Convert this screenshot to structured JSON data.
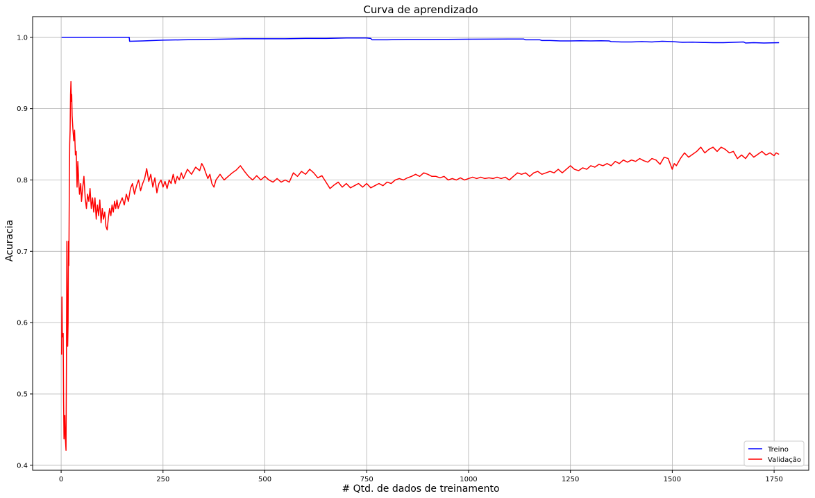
{
  "chart_data": {
    "type": "line",
    "title": "Curva de aprendizado",
    "xlabel": "# Qtd. de dados de treinamento",
    "ylabel": "Acuracia",
    "xlim": [
      -70,
      1835
    ],
    "ylim": [
      0.393,
      1.029
    ],
    "xticks": [
      0,
      250,
      500,
      750,
      1000,
      1250,
      1500,
      1750
    ],
    "yticks": [
      0.4,
      0.5,
      0.6,
      0.7,
      0.8,
      0.9,
      1.0
    ],
    "xtick_labels": [
      "0",
      "250",
      "500",
      "750",
      "1000",
      "1250",
      "1500",
      "1750"
    ],
    "ytick_labels": [
      "0.4",
      "0.5",
      "0.6",
      "0.7",
      "0.8",
      "0.9",
      "1.0"
    ],
    "grid": true,
    "legend_position": "lower-right",
    "series": [
      {
        "name": "Treino",
        "color": "#0000ff",
        "points": [
          [
            1,
            1.0
          ],
          [
            50,
            1.0
          ],
          [
            100,
            1.0
          ],
          [
            150,
            1.0
          ],
          [
            167,
            1.0
          ],
          [
            168,
            0.9945
          ],
          [
            200,
            0.995
          ],
          [
            250,
            0.996
          ],
          [
            300,
            0.9965
          ],
          [
            350,
            0.997
          ],
          [
            400,
            0.9975
          ],
          [
            450,
            0.998
          ],
          [
            500,
            0.998
          ],
          [
            550,
            0.998
          ],
          [
            600,
            0.9985
          ],
          [
            650,
            0.9985
          ],
          [
            700,
            0.999
          ],
          [
            750,
            0.999
          ],
          [
            760,
            0.9985
          ],
          [
            763,
            0.9965
          ],
          [
            800,
            0.9965
          ],
          [
            850,
            0.997
          ],
          [
            900,
            0.997
          ],
          [
            950,
            0.9972
          ],
          [
            1000,
            0.9974
          ],
          [
            1050,
            0.9975
          ],
          [
            1100,
            0.9976
          ],
          [
            1135,
            0.9977
          ],
          [
            1140,
            0.9965
          ],
          [
            1175,
            0.9965
          ],
          [
            1180,
            0.9955
          ],
          [
            1200,
            0.9955
          ],
          [
            1225,
            0.995
          ],
          [
            1250,
            0.995
          ],
          [
            1275,
            0.9952
          ],
          [
            1300,
            0.995
          ],
          [
            1325,
            0.9952
          ],
          [
            1345,
            0.995
          ],
          [
            1350,
            0.994
          ],
          [
            1375,
            0.9935
          ],
          [
            1400,
            0.9935
          ],
          [
            1425,
            0.994
          ],
          [
            1450,
            0.9935
          ],
          [
            1475,
            0.9945
          ],
          [
            1500,
            0.994
          ],
          [
            1525,
            0.993
          ],
          [
            1550,
            0.9932
          ],
          [
            1575,
            0.9928
          ],
          [
            1600,
            0.9925
          ],
          [
            1625,
            0.9925
          ],
          [
            1650,
            0.993
          ],
          [
            1675,
            0.9935
          ],
          [
            1680,
            0.992
          ],
          [
            1700,
            0.9925
          ],
          [
            1725,
            0.992
          ],
          [
            1762,
            0.9925
          ]
        ]
      },
      {
        "name": "Validação",
        "color": "#ff0000",
        "points": [
          [
            1,
            0.555
          ],
          [
            2,
            0.636
          ],
          [
            3,
            0.58
          ],
          [
            5,
            0.585
          ],
          [
            6,
            0.49
          ],
          [
            7,
            0.437
          ],
          [
            9,
            0.47
          ],
          [
            10,
            0.44
          ],
          [
            12,
            0.421
          ],
          [
            13,
            0.54
          ],
          [
            14,
            0.714
          ],
          [
            15,
            0.62
          ],
          [
            16,
            0.567
          ],
          [
            17,
            0.6
          ],
          [
            18,
            0.714
          ],
          [
            19,
            0.68
          ],
          [
            20,
            0.78
          ],
          [
            21,
            0.85
          ],
          [
            22,
            0.87
          ],
          [
            23,
            0.92
          ],
          [
            24,
            0.938
          ],
          [
            25,
            0.91
          ],
          [
            26,
            0.92
          ],
          [
            27,
            0.89
          ],
          [
            29,
            0.87
          ],
          [
            31,
            0.855
          ],
          [
            33,
            0.87
          ],
          [
            35,
            0.835
          ],
          [
            37,
            0.84
          ],
          [
            39,
            0.79
          ],
          [
            41,
            0.826
          ],
          [
            43,
            0.8
          ],
          [
            45,
            0.78
          ],
          [
            48,
            0.795
          ],
          [
            50,
            0.77
          ],
          [
            53,
            0.79
          ],
          [
            56,
            0.805
          ],
          [
            59,
            0.775
          ],
          [
            62,
            0.76
          ],
          [
            65,
            0.78
          ],
          [
            68,
            0.77
          ],
          [
            71,
            0.788
          ],
          [
            74,
            0.76
          ],
          [
            77,
            0.775
          ],
          [
            80,
            0.755
          ],
          [
            83,
            0.775
          ],
          [
            86,
            0.745
          ],
          [
            89,
            0.765
          ],
          [
            92,
            0.75
          ],
          [
            95,
            0.772
          ],
          [
            98,
            0.74
          ],
          [
            101,
            0.76
          ],
          [
            104,
            0.745
          ],
          [
            107,
            0.755
          ],
          [
            110,
            0.735
          ],
          [
            113,
            0.73
          ],
          [
            116,
            0.748
          ],
          [
            119,
            0.76
          ],
          [
            122,
            0.75
          ],
          [
            125,
            0.765
          ],
          [
            128,
            0.755
          ],
          [
            131,
            0.77
          ],
          [
            134,
            0.76
          ],
          [
            137,
            0.772
          ],
          [
            140,
            0.76
          ],
          [
            145,
            0.768
          ],
          [
            150,
            0.775
          ],
          [
            155,
            0.765
          ],
          [
            160,
            0.78
          ],
          [
            165,
            0.77
          ],
          [
            170,
            0.788
          ],
          [
            175,
            0.795
          ],
          [
            180,
            0.78
          ],
          [
            185,
            0.792
          ],
          [
            190,
            0.8
          ],
          [
            195,
            0.785
          ],
          [
            200,
            0.795
          ],
          [
            205,
            0.802
          ],
          [
            210,
            0.816
          ],
          [
            215,
            0.798
          ],
          [
            220,
            0.808
          ],
          [
            225,
            0.79
          ],
          [
            230,
            0.803
          ],
          [
            235,
            0.782
          ],
          [
            240,
            0.795
          ],
          [
            245,
            0.8
          ],
          [
            250,
            0.79
          ],
          [
            255,
            0.798
          ],
          [
            260,
            0.788
          ],
          [
            265,
            0.8
          ],
          [
            270,
            0.795
          ],
          [
            275,
            0.808
          ],
          [
            280,
            0.795
          ],
          [
            285,
            0.805
          ],
          [
            290,
            0.8
          ],
          [
            295,
            0.81
          ],
          [
            300,
            0.802
          ],
          [
            310,
            0.815
          ],
          [
            320,
            0.808
          ],
          [
            330,
            0.818
          ],
          [
            340,
            0.813
          ],
          [
            345,
            0.823
          ],
          [
            350,
            0.818
          ],
          [
            355,
            0.81
          ],
          [
            360,
            0.802
          ],
          [
            365,
            0.808
          ],
          [
            370,
            0.795
          ],
          [
            375,
            0.79
          ],
          [
            380,
            0.8
          ],
          [
            390,
            0.808
          ],
          [
            400,
            0.8
          ],
          [
            410,
            0.805
          ],
          [
            420,
            0.81
          ],
          [
            430,
            0.814
          ],
          [
            440,
            0.82
          ],
          [
            450,
            0.812
          ],
          [
            460,
            0.805
          ],
          [
            470,
            0.8
          ],
          [
            480,
            0.806
          ],
          [
            490,
            0.8
          ],
          [
            500,
            0.805
          ],
          [
            510,
            0.8
          ],
          [
            520,
            0.797
          ],
          [
            530,
            0.802
          ],
          [
            540,
            0.797
          ],
          [
            550,
            0.8
          ],
          [
            560,
            0.797
          ],
          [
            570,
            0.81
          ],
          [
            580,
            0.805
          ],
          [
            590,
            0.812
          ],
          [
            600,
            0.808
          ],
          [
            610,
            0.815
          ],
          [
            620,
            0.81
          ],
          [
            630,
            0.803
          ],
          [
            640,
            0.806
          ],
          [
            650,
            0.797
          ],
          [
            660,
            0.788
          ],
          [
            670,
            0.793
          ],
          [
            680,
            0.797
          ],
          [
            690,
            0.79
          ],
          [
            700,
            0.795
          ],
          [
            710,
            0.789
          ],
          [
            720,
            0.792
          ],
          [
            730,
            0.795
          ],
          [
            740,
            0.79
          ],
          [
            750,
            0.795
          ],
          [
            760,
            0.789
          ],
          [
            770,
            0.792
          ],
          [
            780,
            0.795
          ],
          [
            790,
            0.792
          ],
          [
            800,
            0.797
          ],
          [
            810,
            0.795
          ],
          [
            820,
            0.8
          ],
          [
            830,
            0.802
          ],
          [
            840,
            0.8
          ],
          [
            850,
            0.803
          ],
          [
            860,
            0.805
          ],
          [
            870,
            0.808
          ],
          [
            880,
            0.805
          ],
          [
            890,
            0.81
          ],
          [
            900,
            0.808
          ],
          [
            910,
            0.805
          ],
          [
            920,
            0.805
          ],
          [
            930,
            0.803
          ],
          [
            940,
            0.805
          ],
          [
            950,
            0.8
          ],
          [
            960,
            0.802
          ],
          [
            970,
            0.8
          ],
          [
            980,
            0.803
          ],
          [
            990,
            0.8
          ],
          [
            1000,
            0.802
          ],
          [
            1010,
            0.804
          ],
          [
            1020,
            0.802
          ],
          [
            1030,
            0.804
          ],
          [
            1040,
            0.802
          ],
          [
            1050,
            0.803
          ],
          [
            1060,
            0.802
          ],
          [
            1070,
            0.804
          ],
          [
            1080,
            0.802
          ],
          [
            1090,
            0.804
          ],
          [
            1100,
            0.8
          ],
          [
            1110,
            0.805
          ],
          [
            1120,
            0.81
          ],
          [
            1130,
            0.808
          ],
          [
            1140,
            0.81
          ],
          [
            1150,
            0.805
          ],
          [
            1160,
            0.81
          ],
          [
            1170,
            0.812
          ],
          [
            1180,
            0.808
          ],
          [
            1190,
            0.81
          ],
          [
            1200,
            0.812
          ],
          [
            1210,
            0.81
          ],
          [
            1220,
            0.815
          ],
          [
            1230,
            0.81
          ],
          [
            1240,
            0.815
          ],
          [
            1250,
            0.82
          ],
          [
            1260,
            0.815
          ],
          [
            1270,
            0.813
          ],
          [
            1280,
            0.817
          ],
          [
            1290,
            0.815
          ],
          [
            1300,
            0.82
          ],
          [
            1310,
            0.818
          ],
          [
            1320,
            0.822
          ],
          [
            1330,
            0.82
          ],
          [
            1340,
            0.823
          ],
          [
            1350,
            0.82
          ],
          [
            1360,
            0.826
          ],
          [
            1370,
            0.823
          ],
          [
            1380,
            0.828
          ],
          [
            1390,
            0.825
          ],
          [
            1400,
            0.828
          ],
          [
            1410,
            0.826
          ],
          [
            1420,
            0.83
          ],
          [
            1430,
            0.827
          ],
          [
            1440,
            0.825
          ],
          [
            1450,
            0.83
          ],
          [
            1460,
            0.828
          ],
          [
            1470,
            0.822
          ],
          [
            1480,
            0.832
          ],
          [
            1490,
            0.83
          ],
          [
            1500,
            0.815
          ],
          [
            1505,
            0.823
          ],
          [
            1510,
            0.82
          ],
          [
            1520,
            0.83
          ],
          [
            1530,
            0.838
          ],
          [
            1540,
            0.832
          ],
          [
            1550,
            0.836
          ],
          [
            1560,
            0.84
          ],
          [
            1570,
            0.846
          ],
          [
            1580,
            0.838
          ],
          [
            1590,
            0.843
          ],
          [
            1600,
            0.846
          ],
          [
            1610,
            0.84
          ],
          [
            1620,
            0.846
          ],
          [
            1630,
            0.843
          ],
          [
            1640,
            0.838
          ],
          [
            1650,
            0.84
          ],
          [
            1660,
            0.83
          ],
          [
            1670,
            0.835
          ],
          [
            1680,
            0.83
          ],
          [
            1690,
            0.838
          ],
          [
            1700,
            0.832
          ],
          [
            1710,
            0.836
          ],
          [
            1720,
            0.84
          ],
          [
            1730,
            0.835
          ],
          [
            1740,
            0.838
          ],
          [
            1750,
            0.834
          ],
          [
            1755,
            0.838
          ],
          [
            1762,
            0.836
          ]
        ]
      }
    ]
  }
}
